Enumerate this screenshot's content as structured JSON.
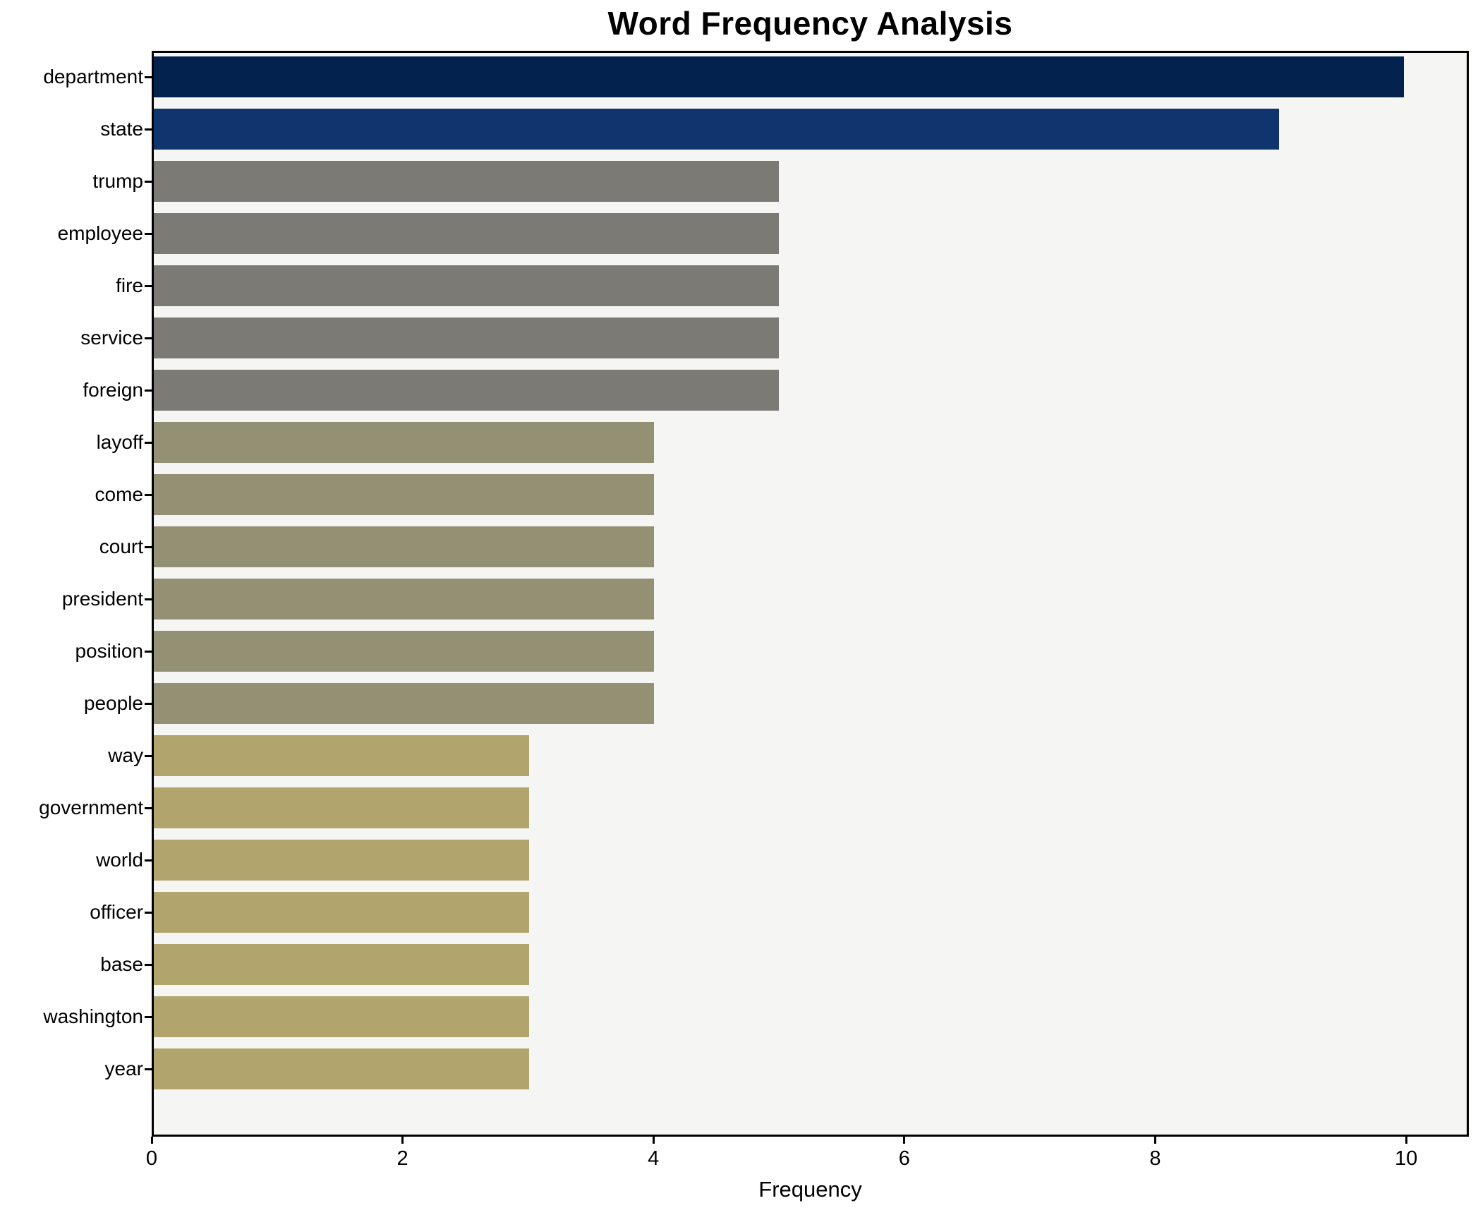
{
  "chart_data": {
    "type": "bar",
    "orientation": "horizontal",
    "title": "Word Frequency Analysis",
    "xlabel": "Frequency",
    "ylabel": "",
    "categories": [
      "department",
      "state",
      "trump",
      "employee",
      "fire",
      "service",
      "foreign",
      "layoff",
      "come",
      "court",
      "president",
      "position",
      "people",
      "way",
      "government",
      "world",
      "officer",
      "base",
      "washington",
      "year"
    ],
    "values": [
      10,
      9,
      5,
      5,
      5,
      5,
      5,
      4,
      4,
      4,
      4,
      4,
      4,
      3,
      3,
      3,
      3,
      3,
      3,
      3
    ],
    "bar_colors": [
      "#03234e",
      "#10356e",
      "#7b7a74",
      "#7b7a74",
      "#7b7a74",
      "#7b7a74",
      "#7b7a74",
      "#949073",
      "#949073",
      "#949073",
      "#949073",
      "#949073",
      "#949073",
      "#b1a46c",
      "#b1a46c",
      "#b1a46c",
      "#b1a46c",
      "#b1a46c",
      "#b1a46c",
      "#b1a46c"
    ],
    "xlim": [
      0,
      10.5
    ],
    "xticks": [
      0,
      2,
      4,
      6,
      8,
      10
    ],
    "grid": false,
    "legend": "none",
    "plot_background": "#f5f5f4",
    "figure_background": "#ffffff",
    "spine_color": "#000000",
    "text_color": "#000000"
  }
}
